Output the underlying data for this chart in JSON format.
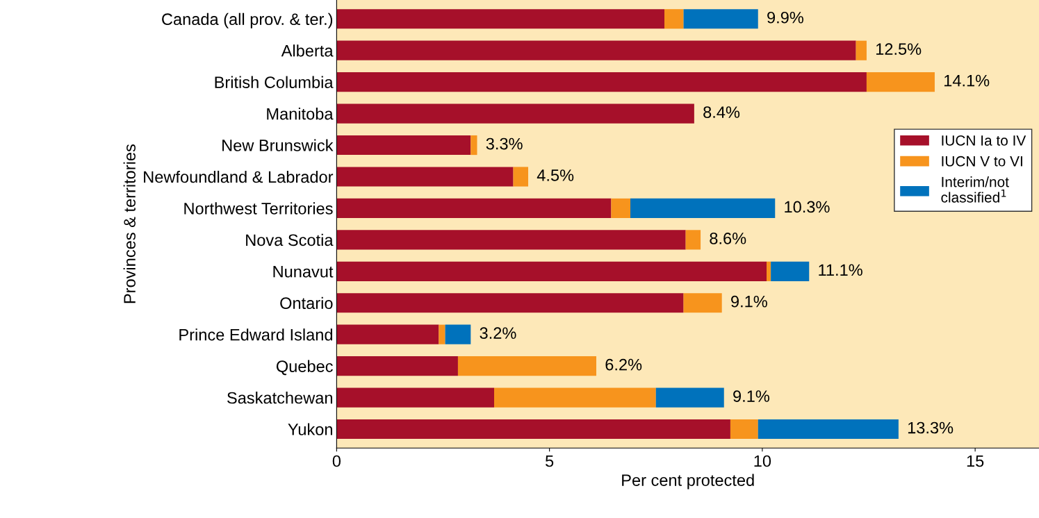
{
  "chart_data": {
    "type": "bar",
    "orientation": "horizontal",
    "stacked": true,
    "categories": [
      "Canada (all prov. & ter.)",
      "Alberta",
      "British Columbia",
      "Manitoba",
      "New Brunswick",
      "Newfoundland & Labrador",
      "Northwest Territories",
      "Nova Scotia",
      "Nunavut",
      "Ontario",
      "Prince Edward Island",
      "Quebec",
      "Saskatchewan",
      "Yukon"
    ],
    "series": [
      {
        "name": "IUCN Ia to IV",
        "color": "#a6102a",
        "values": [
          7.7,
          12.2,
          12.45,
          8.4,
          3.15,
          4.15,
          6.45,
          8.2,
          10.1,
          8.15,
          2.4,
          2.85,
          3.7,
          9.25
        ]
      },
      {
        "name": "IUCN V to VI",
        "color": "#f7941d",
        "values": [
          0.45,
          0.25,
          1.6,
          null,
          0.15,
          0.35,
          0.45,
          0.35,
          0.1,
          0.9,
          0.15,
          3.25,
          3.8,
          0.65
        ]
      },
      {
        "name": "Interim/not\nclassified$^{1}$",
        "color": "#0072bc",
        "values": [
          1.75,
          null,
          null,
          null,
          null,
          null,
          3.4,
          null,
          0.9,
          null,
          0.6,
          null,
          1.6,
          3.3
        ]
      }
    ],
    "totals": [
      "9.9%",
      "12.5%",
      "14.1%",
      "8.4%",
      "3.3%",
      "4.5%",
      "10.3%",
      "8.6%",
      "11.1%",
      "9.1%",
      "3.2%",
      "6.2%",
      "9.1%",
      "13.3%"
    ],
    "xlim": [
      0,
      16.5
    ],
    "xticks": [
      0,
      5,
      10,
      15
    ],
    "xlabel": "Per cent protected",
    "ylabel": "Provinces & territories",
    "legend": "right",
    "grid": false
  }
}
